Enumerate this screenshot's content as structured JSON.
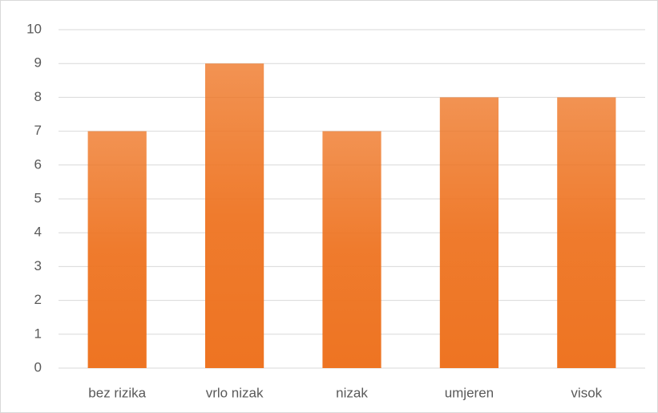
{
  "chart_data": {
    "type": "bar",
    "categories": [
      "bez rizika",
      "vrlo nizak",
      "nizak",
      "umjeren",
      "visok"
    ],
    "values": [
      7,
      9,
      7,
      8,
      8
    ],
    "color": "#ee7422",
    "ylim": [
      0,
      10
    ],
    "yticks": [
      0,
      1,
      2,
      3,
      4,
      5,
      6,
      7,
      8,
      9,
      10
    ],
    "grid": true
  }
}
